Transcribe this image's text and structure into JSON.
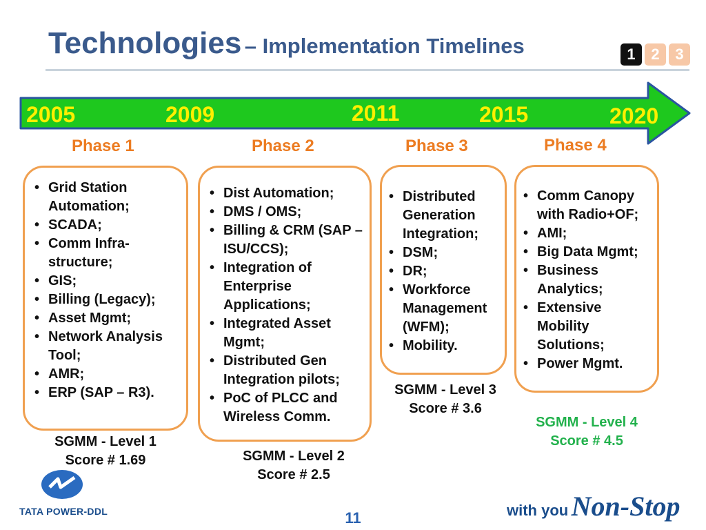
{
  "header": {
    "title_main": "Technologies",
    "title_sub": "– Implementation Timelines",
    "pager": [
      "1",
      "2",
      "3"
    ]
  },
  "timeline": {
    "years": [
      "2005",
      "2009",
      "2011",
      "2015",
      "2020"
    ],
    "colors": {
      "arrow": "#1ec81e",
      "year_text": "#ffef00",
      "phase": "#ec7c22",
      "box_border": "#f0a050"
    }
  },
  "phases": [
    {
      "label": "Phase 1",
      "items": [
        "Grid Station Automation;",
        "SCADA;",
        "Comm Infra-structure;",
        "GIS;",
        "Billing (Legacy);",
        "Asset Mgmt;",
        "Network Analysis Tool;",
        "AMR;",
        "ERP (SAP – R3)."
      ],
      "level": "SGMM - Level 1",
      "score": "Score # 1.69"
    },
    {
      "label": "Phase 2",
      "items": [
        "Dist Automation;",
        "DMS / OMS;",
        "Billing & CRM (SAP – ISU/CCS);",
        "Integration of Enterprise Applications;",
        "Integrated Asset Mgmt;",
        "Distributed Gen Integration pilots;",
        "PoC of PLCC and Wireless Comm."
      ],
      "level": "SGMM - Level 2",
      "score": "Score # 2.5"
    },
    {
      "label": "Phase 3",
      "items": [
        "Distributed Generation Integration;",
        "DSM;",
        "DR;",
        "Workforce Management (WFM);",
        "Mobility."
      ],
      "level": "SGMM - Level 3",
      "score": "Score # 3.6"
    },
    {
      "label": "Phase 4",
      "items": [
        "Comm Canopy with Radio+OF;",
        "AMI;",
        "Big Data Mgmt;",
        "Business Analytics;",
        "Extensive Mobility Solutions;",
        "Power Mgmt."
      ],
      "level": "SGMM - Level 4",
      "score": "Score # 4.5"
    }
  ],
  "footer": {
    "logo_text": "TATA POWER-DDL",
    "page_number": "11",
    "tagline_with": "with you",
    "tagline_nonstop": "Non-Stop"
  }
}
